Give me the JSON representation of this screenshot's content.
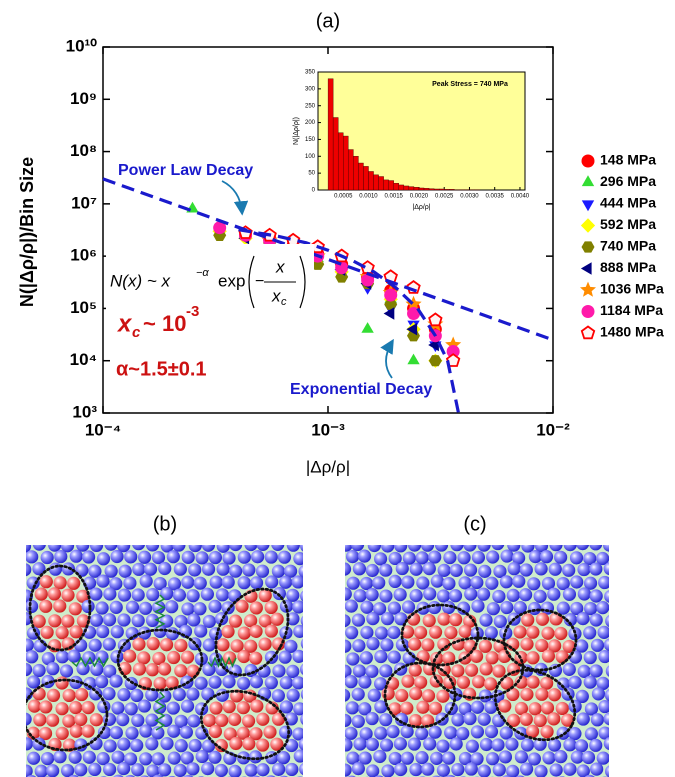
{
  "chart_data": [
    {
      "type": "scatter",
      "title": "(a)",
      "xlabel": "|Δρ/ρ|",
      "ylabel": "N(|Δρ/ρ|)/Bin Size",
      "xscale": "log",
      "yscale": "log",
      "xlim": [
        0.0001,
        0.01
      ],
      "ylim": [
        1000,
        10000000000
      ],
      "xticks": [
        {
          "value": 0.0001,
          "label": "10⁻⁴"
        },
        {
          "value": 0.001,
          "label": "10⁻³"
        },
        {
          "value": 0.01,
          "label": "10⁻²"
        }
      ],
      "yticks": [
        {
          "value": 1000,
          "label": "10³"
        },
        {
          "value": 10000,
          "label": "10⁴"
        },
        {
          "value": 100000,
          "label": "10⁵"
        },
        {
          "value": 1000000,
          "label": "10⁶"
        },
        {
          "value": 10000000,
          "label": "10⁷"
        },
        {
          "value": 100000000,
          "label": "10⁸"
        },
        {
          "value": 1000000000,
          "label": "10⁹"
        },
        {
          "value": 10000000000,
          "label": "10¹⁰"
        }
      ],
      "legend": "right",
      "series": [
        {
          "name": "148 MPa",
          "color": "#ff0000",
          "marker": "circle",
          "x": [
            0.00043,
            0.00055,
            0.0007,
            0.0009,
            0.00115,
            0.0015,
            0.0019,
            0.0024,
            0.003
          ],
          "values": [
            2500000,
            2200000,
            1600000,
            1100000,
            700000,
            400000,
            220000,
            100000,
            40000
          ]
        },
        {
          "name": "296 MPa",
          "color": "#33dd33",
          "marker": "triangle-up",
          "x": [
            0.00025,
            0.00033,
            0.00043,
            0.00055,
            0.0009,
            0.0015,
            0.0019,
            0.0024
          ],
          "values": [
            8000000,
            3500000,
            2500000,
            2000000,
            900000,
            40000,
            150000,
            10000
          ]
        },
        {
          "name": "444 MPa",
          "color": "#1a1aff",
          "marker": "triangle-down",
          "x": [
            0.00033,
            0.00055,
            0.0009,
            0.00115,
            0.0015,
            0.0019,
            0.0024,
            0.003
          ],
          "values": [
            3000000,
            1800000,
            900000,
            500000,
            250000,
            100000,
            50000,
            20000
          ]
        },
        {
          "name": "592 MPa",
          "color": "#ffff00",
          "marker": "diamond",
          "x": [
            0.00033,
            0.00043,
            0.0007,
            0.00115,
            0.0019,
            0.0024,
            0.003
          ],
          "values": [
            3000000,
            2200000,
            1400000,
            500000,
            150000,
            40000,
            10000
          ]
        },
        {
          "name": "740 MPa",
          "color": "#808000",
          "marker": "hexagon",
          "x": [
            0.00033,
            0.00055,
            0.0007,
            0.0009,
            0.00115,
            0.0015,
            0.0019,
            0.0024,
            0.003
          ],
          "values": [
            2500000,
            1800000,
            1200000,
            700000,
            400000,
            300000,
            120000,
            30000,
            10000
          ]
        },
        {
          "name": "888 MPa",
          "color": "#000080",
          "marker": "triangle-left",
          "x": [
            0.00043,
            0.0007,
            0.00115,
            0.0015,
            0.0019,
            0.0024,
            0.003
          ],
          "values": [
            2200000,
            1400000,
            550000,
            300000,
            80000,
            40000,
            20000
          ]
        },
        {
          "name": "1036 MPa",
          "color": "#ff8c00",
          "marker": "star",
          "x": [
            0.00055,
            0.0009,
            0.0015,
            0.0019,
            0.0024,
            0.003,
            0.0036
          ],
          "values": [
            2000000,
            1000000,
            400000,
            200000,
            120000,
            50000,
            20000
          ]
        },
        {
          "name": "1184 MPa",
          "color": "#ff1aaa",
          "marker": "circle",
          "x": [
            0.00033,
            0.00043,
            0.00055,
            0.0007,
            0.0009,
            0.00115,
            0.0015,
            0.0019,
            0.0024,
            0.003,
            0.0036
          ],
          "values": [
            3500000,
            2500000,
            2000000,
            1500000,
            1000000,
            600000,
            350000,
            180000,
            80000,
            30000,
            15000
          ]
        },
        {
          "name": "1480 MPa",
          "color": "#ff0000",
          "marker": "pentagon-open",
          "x": [
            0.00043,
            0.00055,
            0.0007,
            0.0009,
            0.00115,
            0.0015,
            0.0019,
            0.0024,
            0.003,
            0.0036
          ],
          "values": [
            2800000,
            2500000,
            2000000,
            1500000,
            1000000,
            600000,
            400000,
            250000,
            60000,
            10000
          ]
        }
      ],
      "fit_lines": [
        {
          "label": "Power Law Decay",
          "color": "#1a1acc",
          "x": [
            0.0001,
            0.01
          ],
          "values": [
            30000000,
            25000
          ]
        },
        {
          "label": "Exponential Decay",
          "color": "#1a1acc",
          "x": [
            0.0004,
            0.0006,
            0.0008,
            0.001,
            0.0013,
            0.0016,
            0.002,
            0.0025,
            0.003,
            0.0034,
            0.0038
          ],
          "values": [
            3200000,
            2400000,
            1800000,
            1300000,
            800000,
            500000,
            250000,
            100000,
            30000,
            10000,
            1000
          ]
        }
      ],
      "formula": {
        "lhs": "N(x) ~ x",
        "exponent": "−α",
        "func": "exp",
        "num": "x",
        "den": "x",
        "den_sub": "c"
      },
      "xc_label": {
        "symbol": "x",
        "sub": "c",
        "text": "~ 10",
        "sup": "-3"
      },
      "alpha_label": "α~1.5±0.1"
    },
    {
      "type": "histogram",
      "title": "Peak Stress = 740 MPa",
      "xlabel": "|Δρ/ρ|",
      "ylabel": "N(|Δρ/ρ|)",
      "color": "#ee0000",
      "background": "#ffff99",
      "xlim": [
        0,
        0.0041
      ],
      "ylim": [
        0,
        350
      ],
      "xticks": [
        0.0005,
        {
          "value": 0.001,
          "label": "0.0010"
        },
        0.0015,
        {
          "value": 0.002,
          "label": "0.0020"
        },
        0.0025,
        {
          "value": 0.003,
          "label": "0.0030"
        },
        0.0035,
        {
          "value": 0.004,
          "label": "0.0040"
        }
      ],
      "yticks": [
        0,
        50,
        100,
        150,
        200,
        250,
        300,
        350
      ],
      "bins": [
        0.0002,
        0.0003,
        0.0004,
        0.0005,
        0.0006,
        0.0007,
        0.0008,
        0.0009,
        0.001,
        0.0011,
        0.0012,
        0.0013,
        0.0014,
        0.0015,
        0.0016,
        0.0017,
        0.0018,
        0.0019,
        0.002,
        0.0021,
        0.0022,
        0.0023,
        0.0024,
        0.0025,
        0.0026,
        0.0027,
        0.0028,
        0.0029,
        0.003,
        0.0031,
        0.0032
      ],
      "values": [
        330,
        215,
        170,
        160,
        120,
        100,
        80,
        70,
        55,
        45,
        40,
        30,
        28,
        20,
        15,
        12,
        10,
        8,
        6,
        5,
        4,
        3,
        3,
        2,
        2,
        1,
        1,
        1,
        1,
        1
      ]
    }
  ],
  "schematics": {
    "labels": [
      "(b)",
      "(c)"
    ]
  }
}
